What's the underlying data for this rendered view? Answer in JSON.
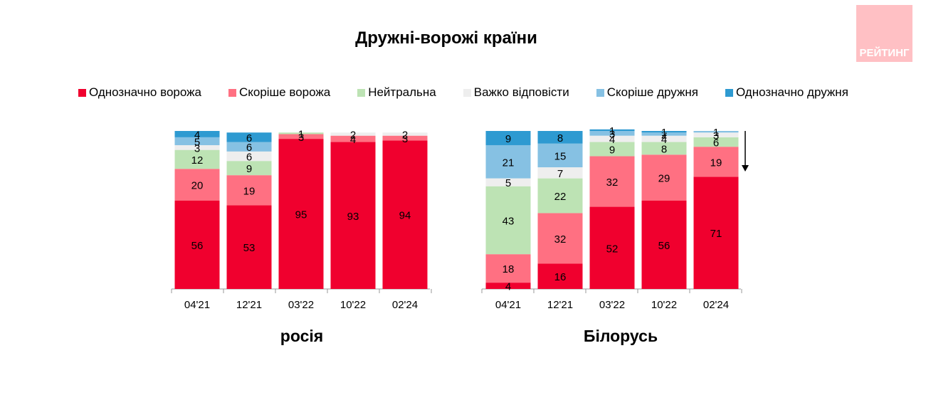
{
  "title": "Дружні-ворожі країни",
  "logo_text": "РЕЙТИНГ",
  "legend": [
    {
      "label": "Однозначно ворожа",
      "color": "#f0002e"
    },
    {
      "label": "Скоріше ворожа",
      "color": "#ff7082"
    },
    {
      "label": "Нейтральна",
      "color": "#bde3b4"
    },
    {
      "label": "Важко відповісти",
      "color": "#eeeeee"
    },
    {
      "label": "Скоріше дружня",
      "color": "#86c1e3"
    },
    {
      "label": "Однозначно дружня",
      "color": "#2e9ad1"
    }
  ],
  "chart_data": {
    "type": "bar",
    "stacked": true,
    "categories": [
      "04'21",
      "12'21",
      "03'22",
      "10'22",
      "02'24"
    ],
    "groups": [
      {
        "name": "росія",
        "series": [
          {
            "name": "Однозначно ворожа",
            "values": [
              56,
              53,
              95,
              93,
              94
            ]
          },
          {
            "name": "Скоріше ворожа",
            "values": [
              20,
              19,
              3,
              4,
              3
            ]
          },
          {
            "name": "Нейтральна",
            "values": [
              12,
              9,
              1,
              0,
              0
            ]
          },
          {
            "name": "Важко відповісти",
            "values": [
              3,
              6,
              0,
              2,
              2
            ]
          },
          {
            "name": "Скоріше дружня",
            "values": [
              5,
              6,
              0,
              0,
              0
            ]
          },
          {
            "name": "Однозначно дружня",
            "values": [
              4,
              6,
              0,
              0,
              0
            ]
          }
        ]
      },
      {
        "name": "Білорусь",
        "series": [
          {
            "name": "Однозначно ворожа",
            "values": [
              4,
              16,
              52,
              56,
              71
            ]
          },
          {
            "name": "Скоріше ворожа",
            "values": [
              18,
              32,
              32,
              29,
              19
            ]
          },
          {
            "name": "Нейтральна",
            "values": [
              43,
              22,
              9,
              8,
              6
            ]
          },
          {
            "name": "Важко відповісти",
            "values": [
              5,
              7,
              4,
              4,
              3
            ]
          },
          {
            "name": "Скоріше дружня",
            "values": [
              21,
              15,
              3,
              2,
              1
            ]
          },
          {
            "name": "Однозначно дружня",
            "values": [
              9,
              8,
              1,
              1,
              0
            ]
          }
        ]
      }
    ],
    "ylim": [
      0,
      100
    ],
    "grid": false
  }
}
